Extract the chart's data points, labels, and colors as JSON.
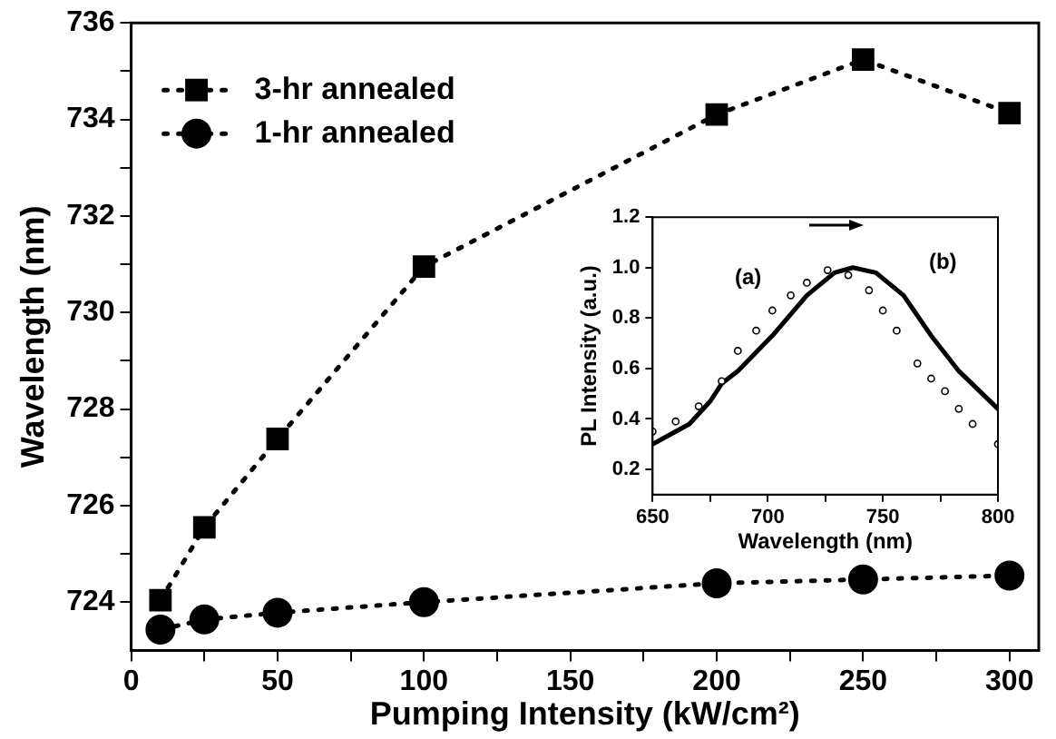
{
  "chart_data": [
    {
      "type": "line",
      "xlabel": "Pumping Intensity (kW/cm²)",
      "ylabel": "Wavelength (nm)",
      "xlim": [
        0,
        310
      ],
      "xticks": [
        0,
        {
          "value": 25,
          "label": null
        },
        50,
        {
          "value": 75,
          "label": null
        },
        100,
        {
          "value": 125,
          "label": null
        },
        150,
        {
          "value": 175,
          "label": null
        },
        200,
        {
          "value": 225,
          "label": null
        },
        250,
        {
          "value": 275,
          "label": null
        },
        300
      ],
      "ylim": [
        723,
        736
      ],
      "yticks": [
        724,
        {
          "value": 725,
          "label": null
        },
        726,
        {
          "value": 727,
          "label": null
        },
        728,
        {
          "value": 729,
          "label": null
        },
        730,
        {
          "value": 731,
          "label": null
        },
        732,
        {
          "value": 733,
          "label": null
        },
        734,
        {
          "value": 735,
          "label": null
        },
        736
      ],
      "grid": false,
      "legend": "top left",
      "line_style": "dotted",
      "series": [
        {
          "name": "3-hr annealed",
          "color": "#000000",
          "marker": "square",
          "x": [
            10,
            25,
            50,
            100,
            200,
            250,
            300
          ],
          "values": [
            724.04,
            725.55,
            727.38,
            730.95,
            734.1,
            735.24,
            734.13
          ]
        },
        {
          "name": "1-hr annealed",
          "color": "#000000",
          "marker": "circle",
          "x": [
            10,
            25,
            50,
            100,
            200,
            250,
            300
          ],
          "values": [
            723.43,
            723.64,
            723.78,
            724.0,
            724.39,
            724.47,
            724.55
          ]
        }
      ]
    },
    {
      "type": "line",
      "xlabel": "Wavelength (nm)",
      "ylabel": "PL Intensity (a.u.)",
      "xlim": [
        650,
        800
      ],
      "xticks": [
        650,
        {
          "value": 675,
          "label": null
        },
        700,
        {
          "value": 725,
          "label": null
        },
        750,
        {
          "value": 775,
          "label": null
        },
        800
      ],
      "ylim": [
        0.1,
        1.2
      ],
      "yticks": [
        0.2,
        0.4,
        0.6,
        0.8,
        {
          "value": 1,
          "label": "1.0"
        },
        1.2
      ],
      "grid": false,
      "series": [
        {
          "name": "(a)",
          "type": "scatter",
          "marker": "circle",
          "color": "#000000",
          "x": [
            650,
            660,
            670,
            680,
            687,
            695,
            702,
            710,
            717,
            726,
            735,
            744,
            750,
            756,
            765,
            771,
            777,
            783,
            789,
            800
          ],
          "values": [
            0.35,
            0.39,
            0.45,
            0.55,
            0.67,
            0.75,
            0.83,
            0.89,
            0.94,
            0.99,
            0.97,
            0.91,
            0.83,
            0.75,
            0.62,
            0.56,
            0.51,
            0.44,
            0.38,
            0.3
          ]
        },
        {
          "name": "(b)",
          "marker": "none",
          "color": "#000000",
          "x": [
            650,
            666,
            675,
            680,
            687,
            702,
            717,
            729,
            737,
            747,
            759,
            771,
            783,
            800
          ],
          "values": [
            0.3,
            0.38,
            0.47,
            0.54,
            0.59,
            0.73,
            0.89,
            0.98,
            1.0,
            0.98,
            0.89,
            0.73,
            0.59,
            0.44
          ]
        }
      ]
    }
  ]
}
